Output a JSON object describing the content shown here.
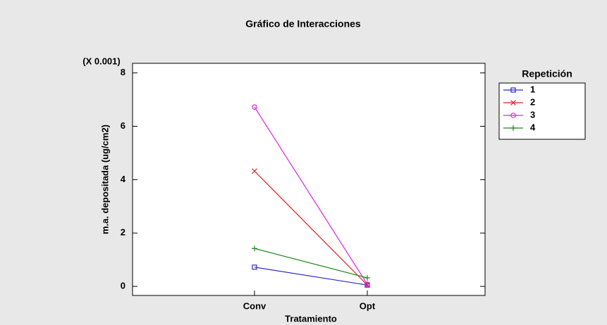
{
  "chart_data": {
    "type": "line",
    "title": "Gráfico de Interacciones",
    "y_scale_note": "(X 0.001)",
    "xlabel": "Tratamiento",
    "ylabel": "m.a. depositada  (ug/cm2)",
    "legend_title": "Repetición",
    "legend": "right",
    "categories": [
      "Conv",
      "Opt"
    ],
    "series": [
      {
        "name": "1",
        "color": "#2a2ad0",
        "marker": "square",
        "values": [
          0.72,
          0.05
        ]
      },
      {
        "name": "2",
        "color": "#e02020",
        "marker": "x",
        "values": [
          4.32,
          0.05
        ]
      },
      {
        "name": "3",
        "color": "#e020e0",
        "marker": "circle",
        "values": [
          6.72,
          0.08
        ]
      },
      {
        "name": "4",
        "color": "#1a8a1a",
        "marker": "plus",
        "values": [
          1.42,
          0.32
        ]
      }
    ],
    "ylim": [
      -0.34,
      8.36
    ],
    "yticks": [
      0,
      2,
      4,
      6,
      8
    ]
  }
}
